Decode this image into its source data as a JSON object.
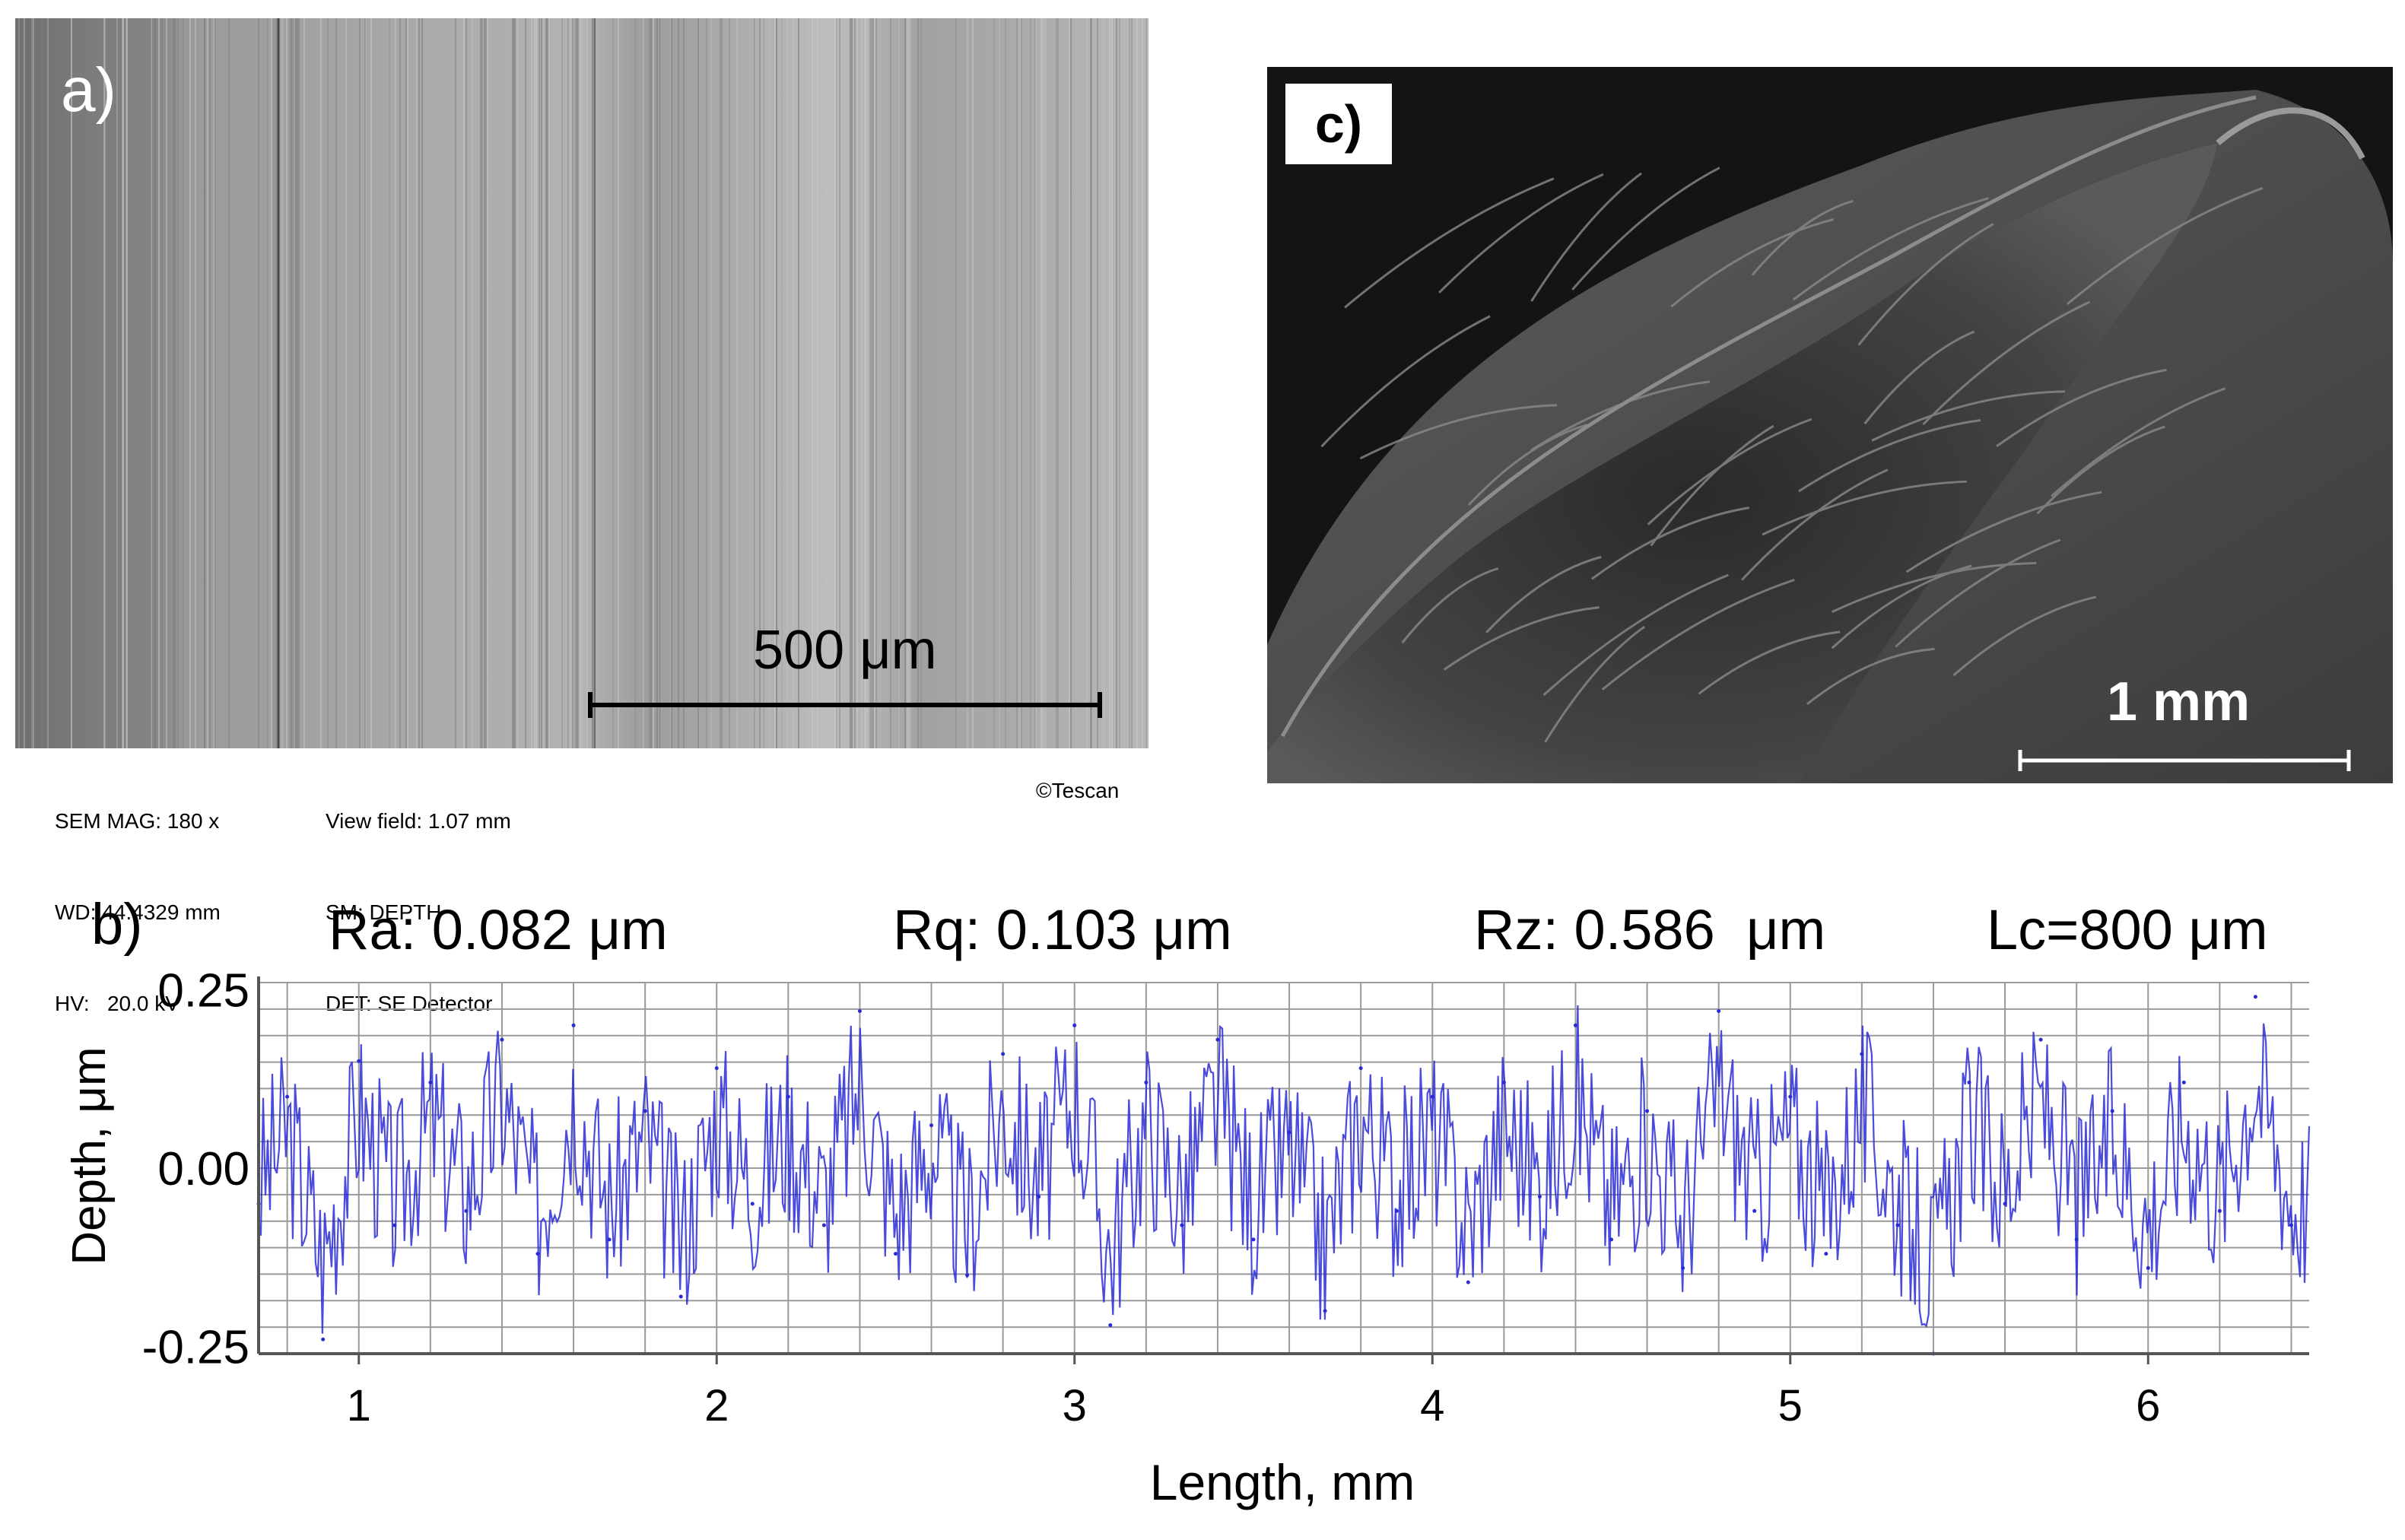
{
  "panels": {
    "a": {
      "letter": "a)",
      "scale_bar_label": "500 μm",
      "meta": {
        "col1": [
          "SEM MAG: 180 x",
          "WD: 44.4329 mm",
          "HV:   20.0 kV"
        ],
        "col2": [
          "View field: 1.07 mm",
          "SM: DEPTH",
          "DET: SE Detector"
        ],
        "copyright": "©Tescan"
      }
    },
    "b": {
      "letter": "b)"
    },
    "c": {
      "letter": "c)",
      "scale_bar_label": "1 mm"
    }
  },
  "chart_data": {
    "type": "line",
    "stats": {
      "ra": "Ra: 0.082 μm",
      "rq": "Rq: 0.103 μm",
      "rz": "Rz: 0.586  μm",
      "lc": "Lc=800 μm"
    },
    "xlabel": "Length, mm",
    "ylabel": "Depth, μm",
    "xlim": [
      0.72,
      6.45
    ],
    "ylim": [
      -0.26,
      0.26
    ],
    "x_ticks": [
      1,
      2,
      3,
      4,
      5,
      6
    ],
    "x_tick_labels": [
      "1",
      "2",
      "3",
      "4",
      "5",
      "6"
    ],
    "y_ticks": [
      0.25,
      0.0,
      -0.25
    ],
    "y_tick_labels": [
      "0.25",
      "0.00",
      "-0.25"
    ],
    "grid": true,
    "line_color": "#2b2bd6",
    "series": [
      {
        "x": [
          0.72,
          0.8,
          0.9,
          1.0,
          1.1,
          1.2,
          1.3,
          1.4,
          1.5,
          1.6,
          1.7,
          1.8,
          1.9,
          2.0,
          2.1,
          2.2,
          2.3,
          2.4,
          2.5,
          2.6,
          2.7,
          2.8,
          2.9,
          3.0,
          3.1,
          3.2,
          3.3,
          3.4,
          3.5,
          3.6,
          3.7,
          3.8,
          3.9,
          4.0,
          4.1,
          4.2,
          4.3,
          4.4,
          4.5,
          4.6,
          4.7,
          4.8,
          4.9,
          5.0,
          5.1,
          5.2,
          5.3,
          5.4,
          5.5,
          5.6,
          5.7,
          5.8,
          5.9,
          6.0,
          6.1,
          6.2,
          6.3,
          6.4
        ],
        "y": [
          -0.05,
          0.1,
          -0.24,
          0.15,
          -0.08,
          0.12,
          -0.06,
          0.18,
          -0.12,
          0.2,
          -0.1,
          0.08,
          -0.18,
          0.14,
          -0.05,
          0.1,
          -0.08,
          0.22,
          -0.12,
          0.06,
          -0.15,
          0.16,
          -0.04,
          0.2,
          -0.22,
          0.12,
          -0.08,
          0.18,
          -0.1,
          0.05,
          -0.2,
          0.14,
          -0.06,
          0.1,
          -0.16,
          0.12,
          -0.04,
          0.2,
          -0.1,
          0.08,
          -0.14,
          0.22,
          -0.06,
          0.1,
          -0.12,
          0.16,
          -0.08,
          -0.26,
          0.12,
          -0.05,
          0.18,
          -0.1,
          0.08,
          -0.14,
          0.12,
          -0.06,
          0.24,
          -0.08
        ]
      }
    ]
  }
}
